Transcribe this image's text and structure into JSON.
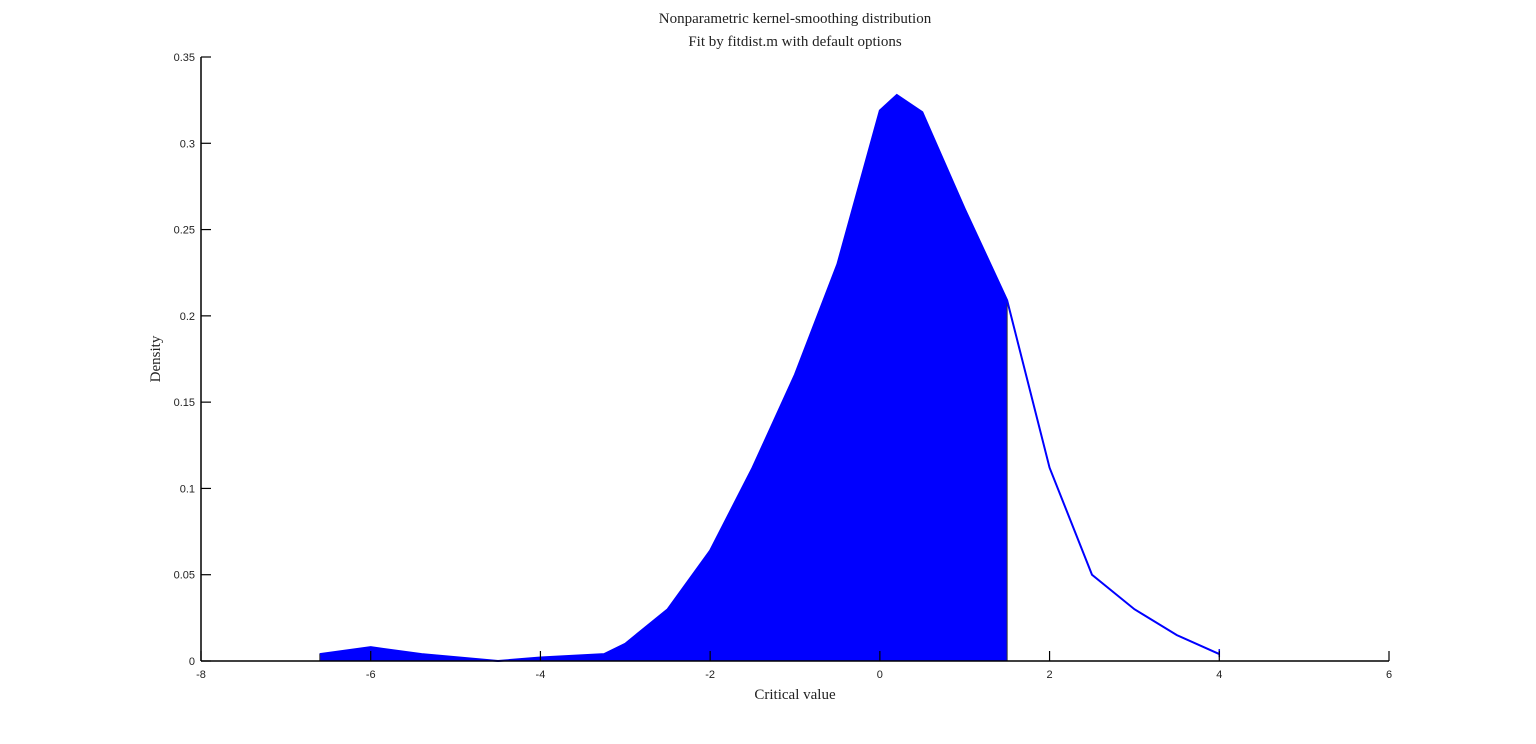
{
  "chart_data": {
    "type": "area",
    "title": "Nonparametric kernel-smoothing distribution",
    "subtitle": "Fit by fitdist.m with default options",
    "x_label": "Critical value",
    "y_label": "Density",
    "x": [
      -6.6,
      -6,
      -5.4,
      -4.5,
      -4,
      -3.25,
      -3,
      -2.5,
      -2,
      -1.5,
      -1,
      -0.5,
      0,
      0.2,
      0.5,
      1,
      1.5,
      2,
      2.5,
      3,
      3.5,
      4
    ],
    "series": [
      {
        "name": "Density",
        "color": "#0000ff",
        "values": [
          0.004,
          0.008,
          0.004,
          0.0,
          0.002,
          0.004,
          0.01,
          0.03,
          0.064,
          0.112,
          0.166,
          0.23,
          0.319,
          0.328,
          0.318,
          0.262,
          0.209,
          0.112,
          0.05,
          0.03,
          0.015,
          0.004
        ]
      }
    ],
    "fill_until": 1.5,
    "fill_color": "#0000ff",
    "xlim": [
      -8,
      6
    ],
    "xticks": [
      -8,
      -6,
      -4,
      -2,
      0,
      2,
      4,
      6
    ],
    "ylim": [
      0,
      0.35
    ],
    "yticks": [
      0,
      0.05,
      0.1,
      0.15,
      0.2,
      0.25,
      0.3,
      0.35
    ]
  }
}
